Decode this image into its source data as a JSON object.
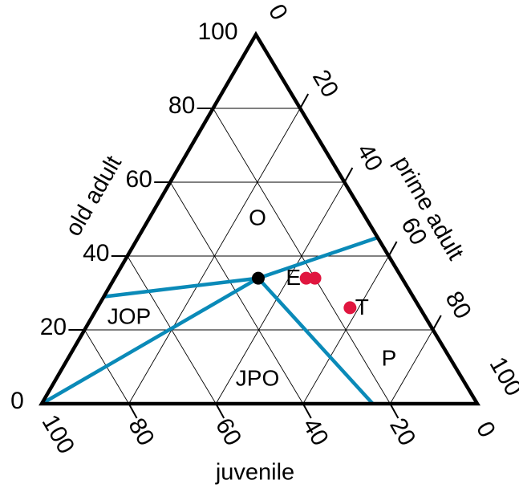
{
  "chart_data": {
    "type": "scatter",
    "subtype": "ternary",
    "axes": {
      "old_adult": {
        "label": "old adult",
        "ticks": [
          "0",
          "20",
          "40",
          "60",
          "80",
          "100"
        ]
      },
      "prime_adult": {
        "label": "prime adult",
        "ticks": [
          "0",
          "20",
          "40",
          "60",
          "80",
          "100"
        ]
      },
      "juvenile": {
        "label": "juvenile",
        "ticks": [
          "100",
          "80",
          "60",
          "40",
          "20",
          "0"
        ]
      }
    },
    "grid_step": 20,
    "grid": true,
    "regions": [
      "O",
      "JOP",
      "JPO",
      "P"
    ],
    "boundary_color": "#0a8ab8",
    "point_color": "#e0163f",
    "center_point": {
      "juvenile": 33,
      "prime_adult": 33,
      "old_adult": 34,
      "color": "#000000"
    },
    "boundaries": [
      {
        "from": {
          "juvenile": 33,
          "prime_adult": 33,
          "old_adult": 34
        },
        "to": {
          "juvenile": 0,
          "prime_adult": 55,
          "old_adult": 45
        }
      },
      {
        "from": {
          "juvenile": 33,
          "prime_adult": 33,
          "old_adult": 34
        },
        "to": {
          "juvenile": 71,
          "prime_adult": 0,
          "old_adult": 29
        }
      },
      {
        "from": {
          "juvenile": 33,
          "prime_adult": 33,
          "old_adult": 34
        },
        "to": {
          "juvenile": 100,
          "prime_adult": 0,
          "old_adult": 0
        }
      },
      {
        "from": {
          "juvenile": 33,
          "prime_adult": 33,
          "old_adult": 34
        },
        "to": {
          "juvenile": 24,
          "prime_adult": 76,
          "old_adult": 0
        }
      }
    ],
    "series": [
      {
        "points": [
          {
            "label": "E",
            "juvenile": 22,
            "prime_adult": 44,
            "old_adult": 34
          },
          {
            "label": "",
            "juvenile": 20,
            "prime_adult": 46,
            "old_adult": 34
          },
          {
            "label": "T",
            "juvenile": 16,
            "prime_adult": 58,
            "old_adult": 26
          }
        ]
      }
    ]
  }
}
